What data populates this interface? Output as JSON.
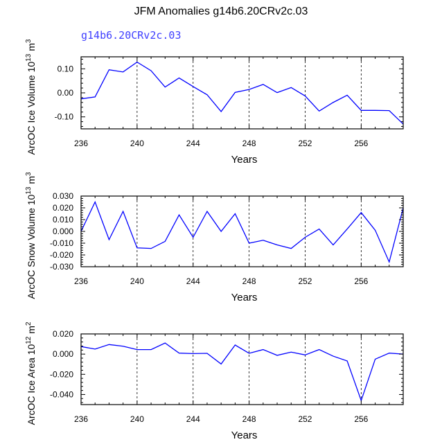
{
  "title": "JFM Anomalies g14b6.20CRv2c.03",
  "subtitle": "g14b6.20CRv2c.03",
  "chart_data": [
    {
      "type": "line",
      "ylabel": "ArcOC Ice Volume 10^13 m^3",
      "ylabel_base": "ArcOC Ice Volume 10",
      "ylabel_exp": "13",
      "ylabel_unit": " m",
      "ylabel_unit_exp": "3",
      "xlabel": "Years",
      "xlim": [
        236,
        259
      ],
      "ylim": [
        -0.15,
        0.15
      ],
      "xticks": [
        236,
        240,
        244,
        248,
        252,
        256
      ],
      "xtick_labels": [
        "236",
        "240",
        "244",
        "248",
        "252",
        "256"
      ],
      "yticks": [
        -0.1,
        0.0,
        0.1
      ],
      "ytick_labels": [
        "-0.10",
        "0.00",
        "0.10"
      ],
      "line_color": "#0000ff",
      "series": [
        {
          "name": "ice_volume",
          "x": [
            236,
            237,
            238,
            239,
            240,
            241,
            242,
            243,
            244,
            245,
            246,
            247,
            248,
            249,
            250,
            251,
            252,
            253,
            254,
            255,
            256,
            257,
            258,
            259
          ],
          "values": [
            -0.025,
            -0.017,
            0.096,
            0.087,
            0.128,
            0.092,
            0.024,
            0.062,
            0.026,
            -0.008,
            -0.078,
            0.002,
            0.014,
            0.035,
            0.001,
            0.022,
            -0.013,
            -0.076,
            -0.04,
            -0.01,
            -0.073,
            -0.073,
            -0.074,
            -0.13
          ]
        }
      ]
    },
    {
      "type": "line",
      "ylabel": "ArcOC Snow Volume 10^13 m^3",
      "ylabel_base": "ArcOC Snow Volume 10",
      "ylabel_exp": "13",
      "ylabel_unit": " m",
      "ylabel_unit_exp": "3",
      "xlabel": "Years",
      "xlim": [
        236,
        259
      ],
      "ylim": [
        -0.03,
        0.03
      ],
      "xticks": [
        236,
        240,
        244,
        248,
        252,
        256
      ],
      "xtick_labels": [
        "236",
        "240",
        "244",
        "248",
        "252",
        "256"
      ],
      "yticks": [
        -0.03,
        -0.02,
        -0.01,
        0.0,
        0.01,
        0.02,
        0.03
      ],
      "ytick_labels": [
        "-0.030",
        "-0.020",
        "-0.010",
        "0.000",
        "0.010",
        "0.020",
        "0.030"
      ],
      "line_color": "#0000ff",
      "series": [
        {
          "name": "snow_volume",
          "x": [
            236,
            237,
            238,
            239,
            240,
            241,
            242,
            243,
            244,
            245,
            246,
            247,
            248,
            249,
            250,
            251,
            252,
            253,
            254,
            255,
            256,
            257,
            258,
            259
          ],
          "values": [
            0.0,
            0.025,
            -0.007,
            0.017,
            -0.014,
            -0.0145,
            -0.0085,
            0.014,
            -0.005,
            0.017,
            0.0,
            0.015,
            -0.01,
            -0.0075,
            -0.0115,
            -0.0145,
            -0.005,
            0.002,
            -0.0115,
            0.002,
            0.016,
            0.001,
            -0.026,
            0.02
          ]
        }
      ]
    },
    {
      "type": "line",
      "ylabel": "ArcOC Ice Area 10^12 m^2",
      "ylabel_base": "ArcOC Ice Area 10",
      "ylabel_exp": "12",
      "ylabel_unit": " m",
      "ylabel_unit_exp": "2",
      "xlabel": "Years",
      "xlim": [
        236,
        259
      ],
      "ylim": [
        -0.05,
        0.02
      ],
      "xticks": [
        236,
        240,
        244,
        248,
        252,
        256
      ],
      "xtick_labels": [
        "236",
        "240",
        "244",
        "248",
        "252",
        "256"
      ],
      "yticks": [
        -0.04,
        -0.02,
        0.0,
        0.02
      ],
      "ytick_labels": [
        "-0.040",
        "-0.020",
        "0.000",
        "0.020"
      ],
      "line_color": "#0000ff",
      "series": [
        {
          "name": "ice_area",
          "x": [
            236,
            237,
            238,
            239,
            240,
            241,
            242,
            243,
            244,
            245,
            246,
            247,
            248,
            249,
            250,
            251,
            252,
            253,
            254,
            255,
            256,
            257,
            258,
            259
          ],
          "values": [
            0.0075,
            0.005,
            0.0095,
            0.0078,
            0.0045,
            0.0045,
            0.011,
            0.001,
            0.0005,
            0.0008,
            -0.0098,
            0.009,
            0.0008,
            0.0045,
            -0.0012,
            0.002,
            -0.0008,
            0.0045,
            -0.002,
            -0.0068,
            -0.046,
            -0.005,
            0.001,
            0.0
          ]
        }
      ]
    }
  ]
}
